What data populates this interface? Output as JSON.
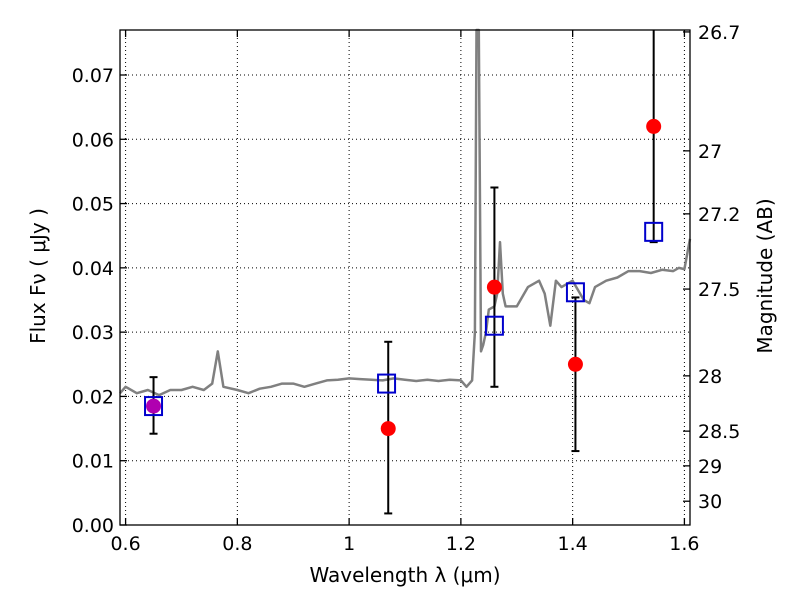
{
  "chart_data": {
    "type": "scatter",
    "title": "",
    "xlabel": "Wavelength  λ (μm)",
    "ylabel": "Flux  Fν  ( μJy )",
    "y2label": "Magnitude (AB)",
    "xlim": [
      0.59,
      1.61
    ],
    "ylim": [
      0.0,
      0.077
    ],
    "grid": true,
    "x_ticks": [
      0.6,
      0.8,
      1.0,
      1.2,
      1.4,
      1.6
    ],
    "x_tick_labels": [
      "0.6",
      "0.8",
      "1",
      "1.2",
      "1.4",
      "1.6"
    ],
    "y_ticks": [
      0.0,
      0.01,
      0.02,
      0.03,
      0.04,
      0.05,
      0.06,
      0.07
    ],
    "y_tick_labels": [
      "0.00",
      "0.01",
      "0.02",
      "0.03",
      "0.04",
      "0.05",
      "0.06",
      "0.07"
    ],
    "mag_ticks": [
      {
        "label": "26.7",
        "flux": 0.0767
      },
      {
        "label": "27",
        "flux": 0.0582
      },
      {
        "label": "27.2",
        "flux": 0.0484
      },
      {
        "label": "27.5",
        "flux": 0.0367
      },
      {
        "label": "28",
        "flux": 0.0232
      },
      {
        "label": "28.5",
        "flux": 0.0146
      },
      {
        "label": "29",
        "flux": 0.0092
      },
      {
        "label": "30",
        "flux": 0.0037
      }
    ],
    "colors": {
      "spectrum": "#808080",
      "observed": "#ff0000",
      "model": "#0000cc",
      "errorbar": "#000000",
      "first_point_fill": "#b000b0"
    },
    "series": [
      {
        "type": "line",
        "x": [
          0.59,
          0.6,
          0.62,
          0.64,
          0.66,
          0.68,
          0.7,
          0.72,
          0.74,
          0.755,
          0.765,
          0.775,
          0.8,
          0.82,
          0.84,
          0.86,
          0.88,
          0.9,
          0.92,
          0.94,
          0.96,
          0.98,
          1.0,
          1.02,
          1.04,
          1.06,
          1.08,
          1.1,
          1.12,
          1.14,
          1.16,
          1.18,
          1.2,
          1.21,
          1.22,
          1.225,
          1.228,
          1.232,
          1.236,
          1.24,
          1.245,
          1.25,
          1.26,
          1.265,
          1.27,
          1.275,
          1.28,
          1.29,
          1.3,
          1.32,
          1.34,
          1.35,
          1.36,
          1.37,
          1.38,
          1.4,
          1.42,
          1.43,
          1.44,
          1.46,
          1.48,
          1.5,
          1.52,
          1.54,
          1.56,
          1.58,
          1.59,
          1.6,
          1.61
        ],
        "y": [
          0.0205,
          0.0215,
          0.0205,
          0.021,
          0.0202,
          0.021,
          0.021,
          0.0215,
          0.021,
          0.022,
          0.027,
          0.0215,
          0.021,
          0.0205,
          0.0212,
          0.0215,
          0.022,
          0.022,
          0.0215,
          0.022,
          0.0225,
          0.0226,
          0.0228,
          0.0227,
          0.0226,
          0.0225,
          0.0228,
          0.0226,
          0.0224,
          0.0226,
          0.0224,
          0.0226,
          0.0225,
          0.0215,
          0.0225,
          0.03,
          0.078,
          0.078,
          0.027,
          0.028,
          0.03,
          0.0335,
          0.034,
          0.036,
          0.044,
          0.036,
          0.034,
          0.034,
          0.034,
          0.037,
          0.038,
          0.036,
          0.031,
          0.038,
          0.037,
          0.038,
          0.035,
          0.0345,
          0.037,
          0.038,
          0.0385,
          0.0395,
          0.0395,
          0.0392,
          0.0397,
          0.0395,
          0.04,
          0.0398,
          0.0445
        ]
      },
      {
        "type": "scatter",
        "marker": "circle",
        "x": [
          0.65,
          1.07,
          1.26,
          1.405,
          1.545
        ],
        "y": [
          0.0185,
          0.015,
          0.037,
          0.025,
          0.062
        ],
        "yerr_low": [
          0.0142,
          0.0018,
          0.0215,
          0.0115,
          0.044
        ],
        "yerr_high": [
          0.023,
          0.0285,
          0.0525,
          0.0354,
          0.078
        ]
      },
      {
        "type": "scatter",
        "marker": "square",
        "x": [
          0.65,
          1.067,
          1.26,
          1.405,
          1.545
        ],
        "y": [
          0.0185,
          0.022,
          0.031,
          0.0362,
          0.0456
        ]
      }
    ]
  }
}
